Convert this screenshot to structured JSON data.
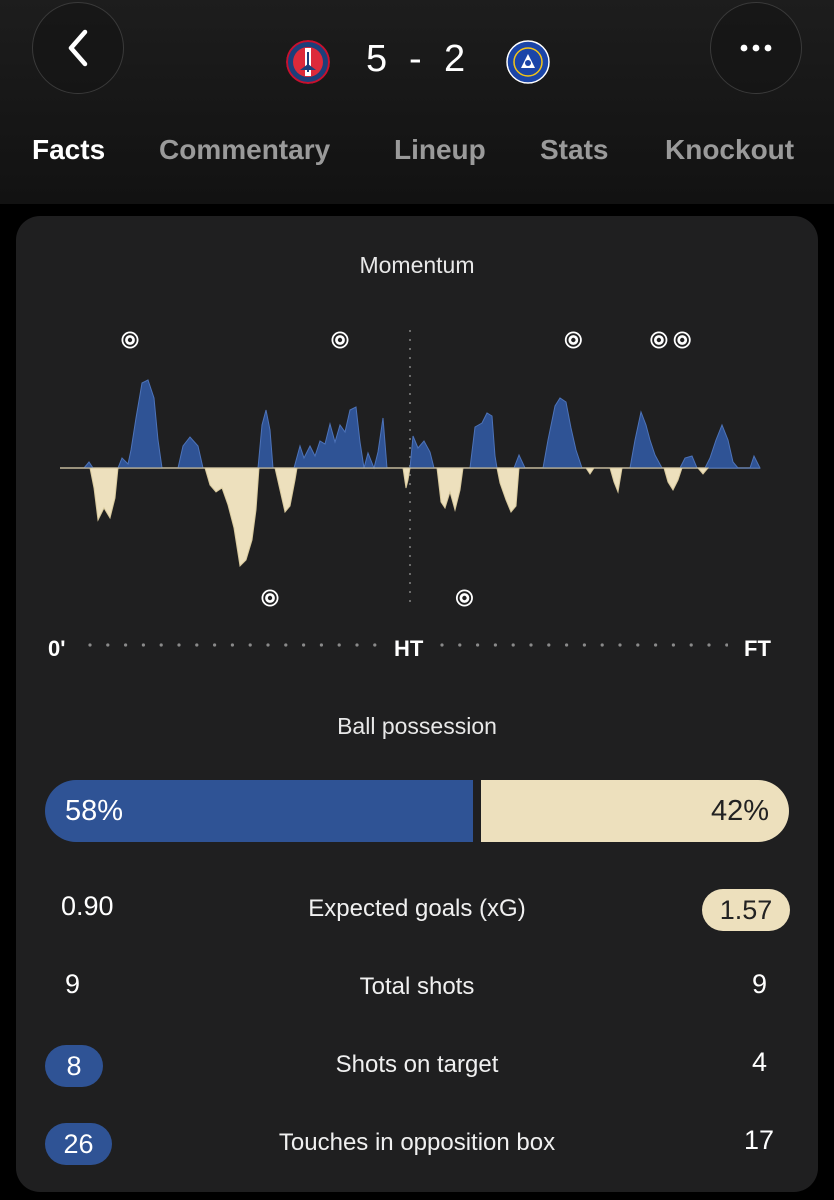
{
  "match": {
    "home_score": "5",
    "separator": "-",
    "away_score": "2",
    "home_crest": "psg-crest-icon",
    "away_crest": "chelsea-crest-icon"
  },
  "tabs": [
    "Facts",
    "Commentary",
    "Lineup",
    "Stats",
    "Knockout"
  ],
  "active_tab": "Facts",
  "momentum": {
    "title": "Momentum",
    "axis": [
      "0'",
      "HT",
      "FT"
    ],
    "home_goal_minutes": [
      9,
      36,
      66,
      77,
      80
    ],
    "away_goal_minutes": [
      27,
      52
    ],
    "colors": {
      "home": "#2f5395",
      "away": "#ede0bd"
    }
  },
  "possession": {
    "title": "Ball possession",
    "home_label": "58%",
    "away_label": "42%",
    "home_value": 58,
    "away_value": 42
  },
  "stats": [
    {
      "label": "Expected goals (xG)",
      "home": "0.90",
      "away": "1.57",
      "highlight": "away"
    },
    {
      "label": "Total shots",
      "home": "9",
      "away": "9",
      "highlight": "none"
    },
    {
      "label": "Shots on target",
      "home": "8",
      "away": "4",
      "highlight": "home"
    },
    {
      "label": "Touches in opposition box",
      "home": "26",
      "away": "17",
      "highlight": "home"
    }
  ],
  "icons": {
    "back": "chevron-left-icon",
    "more": "more-horizontal-icon",
    "goal": "football-icon"
  }
}
